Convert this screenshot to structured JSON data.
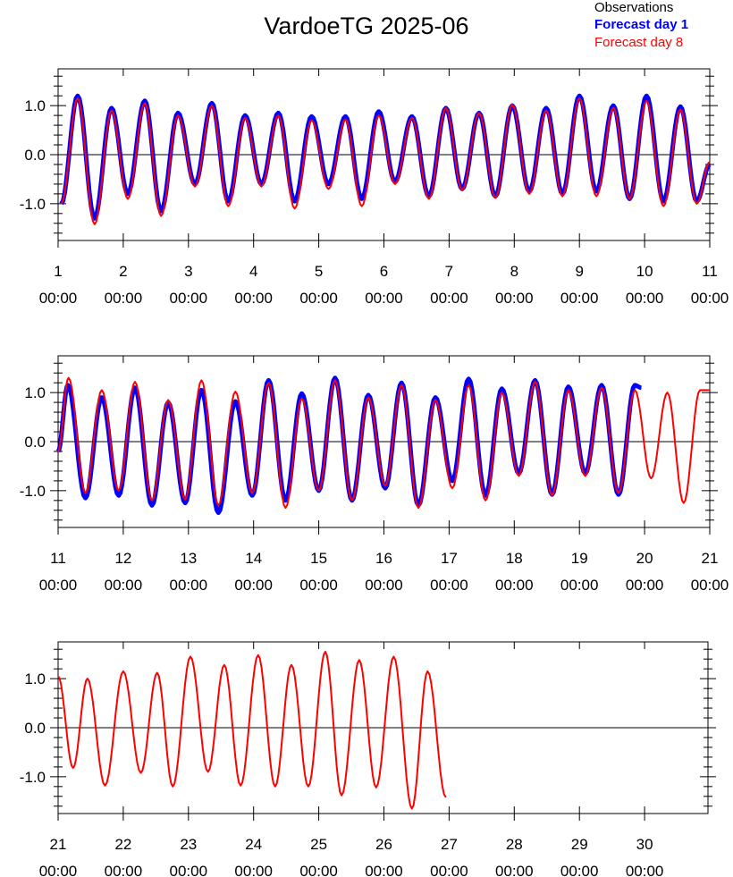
{
  "title": "VardoeTG 2025-06",
  "legend": {
    "observations": "Observations",
    "forecast_day_1": "Forecast day 1",
    "forecast_day_8": "Forecast day 8"
  },
  "colors": {
    "observations": "#000000",
    "forecast_day_1": "#0000ff",
    "forecast_day_8": "#ff0000"
  },
  "chart_data": [
    {
      "type": "line",
      "panel": 1,
      "xlim": [
        1,
        11
      ],
      "ylim": [
        -1.75,
        1.75
      ],
      "yticks": [
        -1.0,
        0.0,
        1.0
      ],
      "ytick_labels": [
        "-1.0",
        "0.0",
        "1.0"
      ],
      "xtick_day_labels": [
        "1",
        "2",
        "3",
        "4",
        "5",
        "6",
        "7",
        "8",
        "9",
        "10",
        "11"
      ],
      "xtick_time_label": "00:00",
      "series": [
        {
          "name": "Forecast day 1",
          "x": [
            1.05,
            1.3,
            1.56,
            1.82,
            2.07,
            2.33,
            2.58,
            2.84,
            3.1,
            3.36,
            3.61,
            3.87,
            4.12,
            4.38,
            4.63,
            4.89,
            5.15,
            5.41,
            5.66,
            5.92,
            6.17,
            6.43,
            6.69,
            6.95,
            7.2,
            7.46,
            7.71,
            7.97,
            8.23,
            8.49,
            8.74,
            9.0,
            9.26,
            9.52,
            9.77,
            10.03,
            10.29,
            10.55,
            10.8,
            11.0
          ],
          "y": [
            -1.0,
            1.2,
            -1.3,
            0.95,
            -0.8,
            1.1,
            -1.15,
            0.85,
            -0.6,
            1.05,
            -0.95,
            0.8,
            -0.6,
            0.85,
            -0.95,
            0.78,
            -0.6,
            0.78,
            -0.9,
            0.88,
            -0.55,
            0.78,
            -0.85,
            0.95,
            -0.7,
            0.85,
            -0.85,
            1.0,
            -0.75,
            0.95,
            -0.8,
            1.2,
            -0.75,
            1.0,
            -0.9,
            1.2,
            -0.95,
            0.98,
            -0.95,
            -0.2
          ]
        },
        {
          "name": "Forecast day 8",
          "x": [
            1.05,
            1.3,
            1.56,
            1.82,
            2.07,
            2.33,
            2.58,
            2.84,
            3.1,
            3.36,
            3.61,
            3.87,
            4.12,
            4.38,
            4.63,
            4.89,
            5.15,
            5.41,
            5.66,
            5.92,
            6.17,
            6.43,
            6.69,
            6.95,
            7.2,
            7.46,
            7.71,
            7.97,
            8.23,
            8.49,
            8.74,
            9.0,
            9.26,
            9.52,
            9.77,
            10.03,
            10.29,
            10.55,
            10.8,
            11.0
          ],
          "y": [
            -1.0,
            1.15,
            -1.42,
            0.9,
            -0.9,
            1.05,
            -1.25,
            0.8,
            -0.65,
            1.0,
            -1.05,
            0.75,
            -0.65,
            0.8,
            -1.1,
            0.7,
            -0.7,
            0.72,
            -1.05,
            0.8,
            -0.6,
            0.75,
            -0.9,
            0.95,
            -0.72,
            0.85,
            -0.88,
            1.02,
            -0.8,
            0.9,
            -0.85,
            1.15,
            -0.85,
            0.95,
            -0.9,
            1.1,
            -1.05,
            0.92,
            -1.0,
            -0.15
          ]
        }
      ]
    },
    {
      "type": "line",
      "panel": 2,
      "xlim": [
        11,
        21
      ],
      "ylim": [
        -1.75,
        1.75
      ],
      "yticks": [
        -1.0,
        0.0,
        1.0
      ],
      "ytick_labels": [
        "-1.0",
        "0.0",
        "1.0"
      ],
      "xtick_day_labels": [
        "11",
        "12",
        "13",
        "14",
        "15",
        "16",
        "17",
        "18",
        "19",
        "20",
        "21"
      ],
      "xtick_time_label": "00:00",
      "series": [
        {
          "name": "Forecast day 1",
          "x": [
            11.0,
            11.15,
            11.42,
            11.67,
            11.93,
            12.18,
            12.44,
            12.69,
            12.95,
            13.2,
            13.46,
            13.72,
            13.98,
            14.23,
            14.49,
            14.74,
            15.0,
            15.25,
            15.51,
            15.76,
            16.02,
            16.27,
            16.53,
            16.79,
            17.05,
            17.3,
            17.56,
            17.81,
            18.07,
            18.32,
            18.58,
            18.83,
            19.09,
            19.34,
            19.6,
            19.85,
            19.95
          ],
          "y": [
            -0.2,
            1.15,
            -1.15,
            0.9,
            -1.1,
            1.1,
            -1.3,
            0.8,
            -1.25,
            1.05,
            -1.45,
            0.82,
            -1.1,
            1.25,
            -1.2,
            0.98,
            -1.0,
            1.3,
            -1.2,
            0.95,
            -0.95,
            1.2,
            -1.3,
            0.9,
            -0.8,
            1.28,
            -1.1,
            1.08,
            -0.65,
            1.25,
            -1.08,
            1.12,
            -0.65,
            1.15,
            -1.08,
            1.15,
            1.1
          ]
        },
        {
          "name": "Forecast day 8",
          "x": [
            11.0,
            11.16,
            11.42,
            11.67,
            11.93,
            12.18,
            12.44,
            12.69,
            12.95,
            13.2,
            13.46,
            13.72,
            13.98,
            14.23,
            14.49,
            14.74,
            15.0,
            15.25,
            15.51,
            15.76,
            16.02,
            16.27,
            16.53,
            16.79,
            17.05,
            17.3,
            17.56,
            17.81,
            18.07,
            18.32,
            18.58,
            18.83,
            19.09,
            19.34,
            19.6,
            19.85,
            20.1,
            20.35,
            20.6,
            20.85,
            21.0
          ],
          "y": [
            -0.2,
            1.3,
            -1.05,
            1.05,
            -1.0,
            1.22,
            -1.2,
            0.85,
            -1.18,
            1.25,
            -1.3,
            1.02,
            -1.05,
            1.2,
            -1.35,
            0.88,
            -1.0,
            1.25,
            -1.2,
            0.9,
            -0.9,
            1.15,
            -1.35,
            0.85,
            -0.95,
            1.15,
            -1.2,
            1.0,
            -0.7,
            1.22,
            -1.1,
            1.05,
            -0.7,
            1.1,
            -1.05,
            1.05,
            -0.75,
            1.0,
            -1.25,
            1.05,
            1.05
          ]
        }
      ]
    },
    {
      "type": "line",
      "panel": 3,
      "xlim": [
        21,
        30.9
      ],
      "ylim": [
        -1.75,
        1.75
      ],
      "yticks": [
        -1.0,
        0.0,
        1.0
      ],
      "ytick_labels": [
        "-1.0",
        "0.0",
        "1.0"
      ],
      "xtick_day_labels": [
        "21",
        "22",
        "23",
        "24",
        "25",
        "26",
        "27",
        "28",
        "29",
        "30"
      ],
      "xtick_time_label": "00:00",
      "series": [
        {
          "name": "Forecast day 8",
          "x": [
            21.0,
            21.23,
            21.45,
            21.72,
            22.0,
            22.27,
            22.52,
            22.76,
            23.03,
            23.3,
            23.55,
            23.8,
            24.07,
            24.33,
            24.58,
            24.84,
            25.1,
            25.35,
            25.62,
            25.88,
            26.15,
            26.43,
            26.67,
            26.95
          ],
          "y": [
            1.05,
            -0.82,
            1.0,
            -1.18,
            1.15,
            -0.92,
            1.12,
            -1.2,
            1.45,
            -0.9,
            1.28,
            -1.18,
            1.48,
            -1.2,
            1.28,
            -1.2,
            1.55,
            -1.38,
            1.38,
            -1.22,
            1.45,
            -1.65,
            1.15,
            -1.42
          ]
        }
      ]
    }
  ]
}
